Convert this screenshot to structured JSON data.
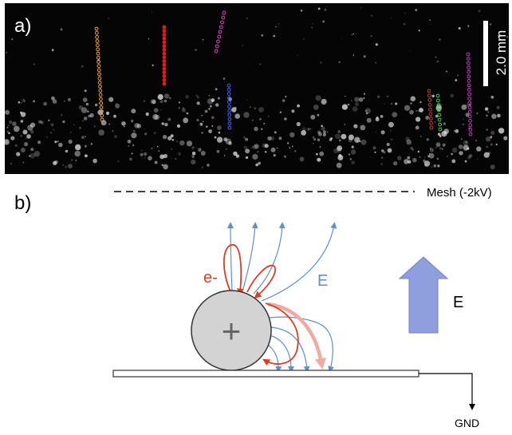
{
  "panel_a": {
    "label": "a)",
    "scale_bar_label": "2.0 mm",
    "tracks": [
      {
        "color": "#f0a030"
      },
      {
        "color": "#d81e1e"
      },
      {
        "color": "#e040c8"
      },
      {
        "color": "#4b5cff"
      },
      {
        "color": "#c23b3b"
      },
      {
        "color": "#33cc44"
      },
      {
        "color": "#cc33cc"
      }
    ]
  },
  "panel_b": {
    "label": "b)",
    "mesh_label": "Mesh (-2kV)",
    "electron_label": "e-",
    "field_label_lines": "E",
    "field_label_arrow": "E",
    "charge_symbol": "+",
    "ground_label": "GND"
  },
  "colors": {
    "field_lines": "#5b8fd6",
    "electron_paths": "#e8391c",
    "thick_path": "#f2aaa0",
    "particle_fill": "#d3d3d3",
    "big_arrow": "#8f9fdd",
    "background_a": "#050505"
  }
}
